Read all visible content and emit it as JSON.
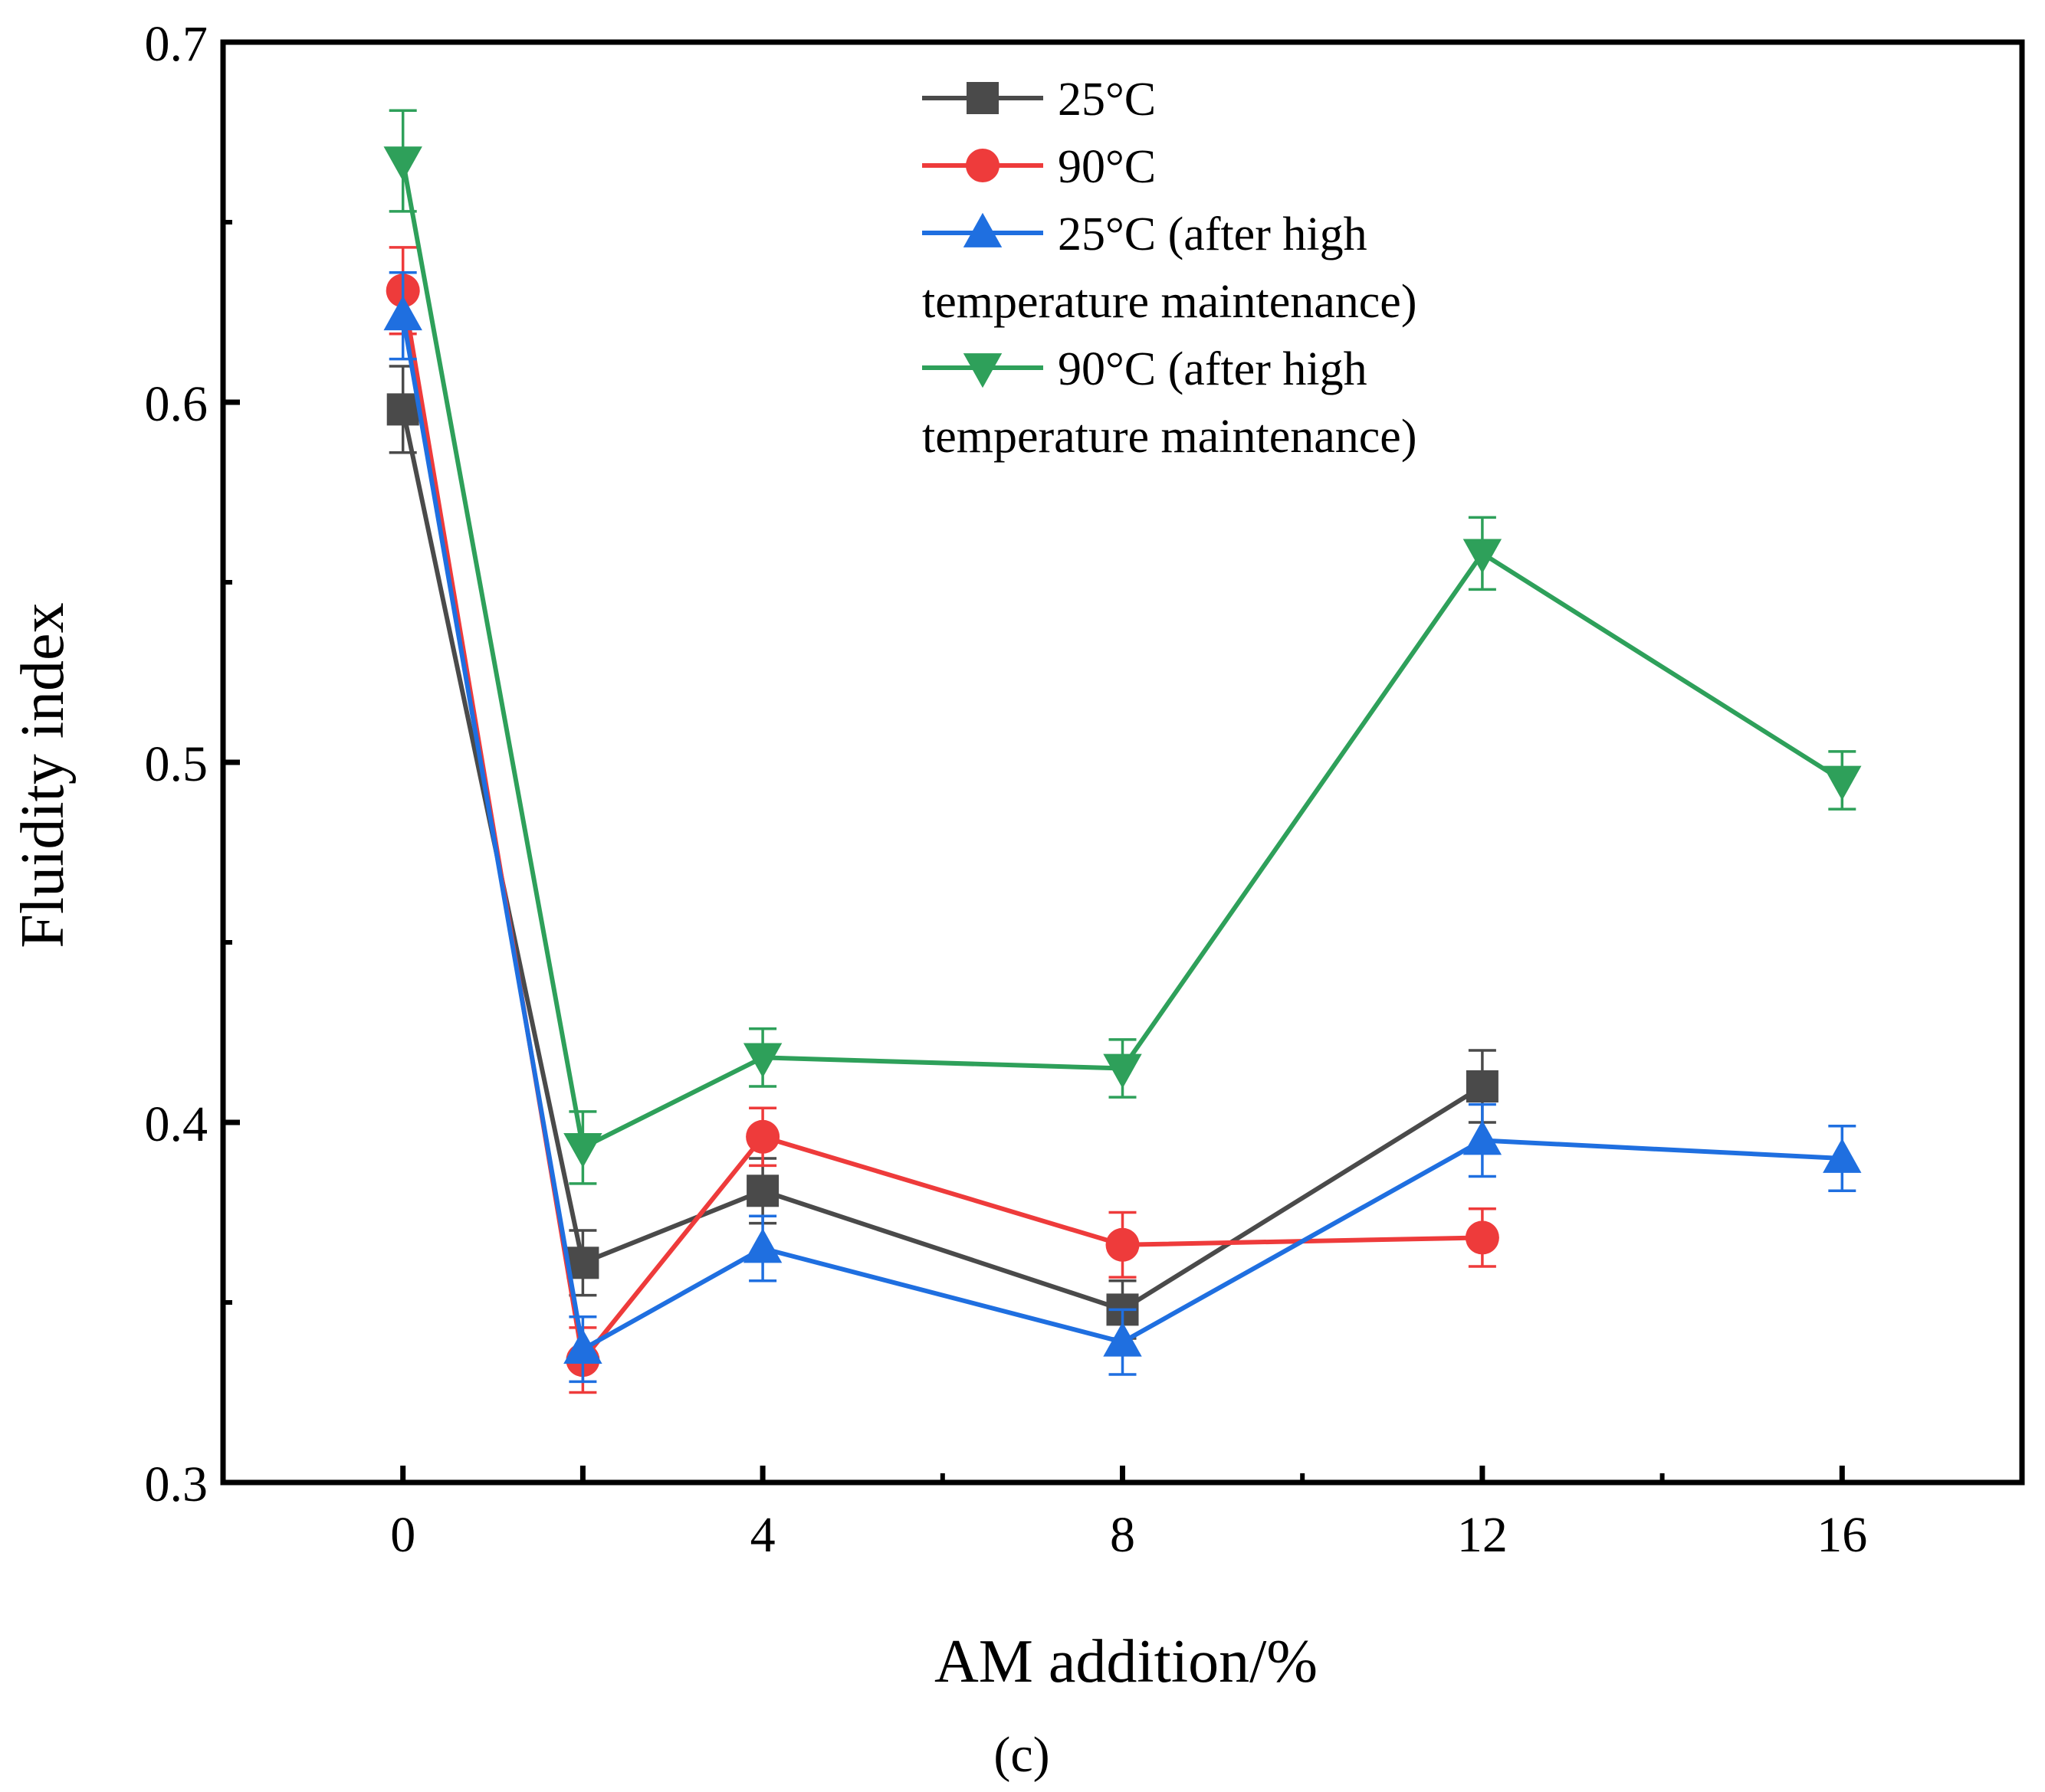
{
  "chart_data": {
    "type": "line",
    "title": "",
    "xlabel": "AM addition/%",
    "ylabel": "Fluidity index",
    "caption": "(c)",
    "x_positions": [
      0,
      1,
      2,
      4,
      6,
      8
    ],
    "categories": [
      "0",
      "",
      "4",
      "8",
      "12",
      "16"
    ],
    "xlim": [
      -1,
      9
    ],
    "ylim": [
      0.3,
      0.7
    ],
    "yticks": [
      "0.3",
      "0.4",
      "0.5",
      "0.6",
      "0.7"
    ],
    "y_tick_values": [
      0.3,
      0.4,
      0.5,
      0.6,
      0.7
    ],
    "y_minor_tick_values": [
      0.35,
      0.45,
      0.55,
      0.65
    ],
    "x_minor_tick_positions": [
      3,
      5,
      7
    ],
    "legend_position": "top-center",
    "series": [
      {
        "name": "25°C",
        "legend_lines": [
          "25°C"
        ],
        "color": "#4a4a4a",
        "marker": "square",
        "values": [
          0.598,
          0.361,
          0.381,
          0.348,
          0.41,
          null
        ],
        "errors": [
          0.012,
          0.009,
          0.009,
          0.008,
          0.01,
          null
        ]
      },
      {
        "name": "90°C",
        "legend_lines": [
          "90°C"
        ],
        "color": "#ee3b3b",
        "marker": "circle",
        "values": [
          0.631,
          0.334,
          0.396,
          0.366,
          0.368,
          null
        ],
        "errors": [
          0.012,
          0.009,
          0.008,
          0.009,
          0.008,
          null
        ]
      },
      {
        "name": "25°C (after high temperature maintenance)",
        "legend_lines": [
          "25°C (after high",
          "temperature maintenance)"
        ],
        "color": "#1f6fe0",
        "marker": "triangle-up",
        "values": [
          0.624,
          0.337,
          0.365,
          0.339,
          0.395,
          0.39
        ],
        "errors": [
          0.012,
          0.009,
          0.009,
          0.009,
          0.01,
          0.009
        ]
      },
      {
        "name": "90°C (after high temperature maintenance)",
        "legend_lines": [
          "90°C (after high",
          "temperature maintenance)"
        ],
        "color": "#2ea05a",
        "marker": "triangle-down",
        "values": [
          0.667,
          0.393,
          0.418,
          0.415,
          0.558,
          0.495
        ],
        "errors": [
          0.014,
          0.01,
          0.008,
          0.008,
          0.01,
          0.008
        ]
      }
    ]
  }
}
